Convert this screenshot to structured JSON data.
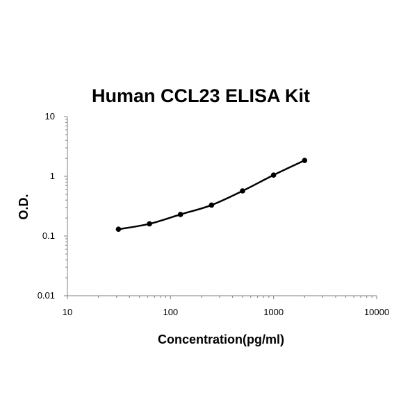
{
  "chart_data": {
    "type": "scatter",
    "title": "Human CCL23 ELISA Kit",
    "xlabel": "Concentration(pg/ml)",
    "ylabel": "O.D.",
    "x_scale": "log",
    "y_scale": "log",
    "xlim": [
      10,
      10000
    ],
    "ylim": [
      0.01,
      10
    ],
    "x_ticks": [
      "10",
      "100",
      "1000",
      "10000"
    ],
    "y_ticks": [
      "0.01",
      "0.1",
      "1",
      "10"
    ],
    "grid": false,
    "legend": "none",
    "series": [
      {
        "x": [
          31.25,
          62.5,
          125,
          250,
          500,
          1000,
          2000
        ],
        "y": [
          0.13,
          0.16,
          0.23,
          0.33,
          0.57,
          1.05,
          1.85
        ]
      }
    ],
    "fit_curve": true,
    "colors": {
      "line": "#000000",
      "marker": "#000000",
      "axis": "#808080"
    }
  }
}
